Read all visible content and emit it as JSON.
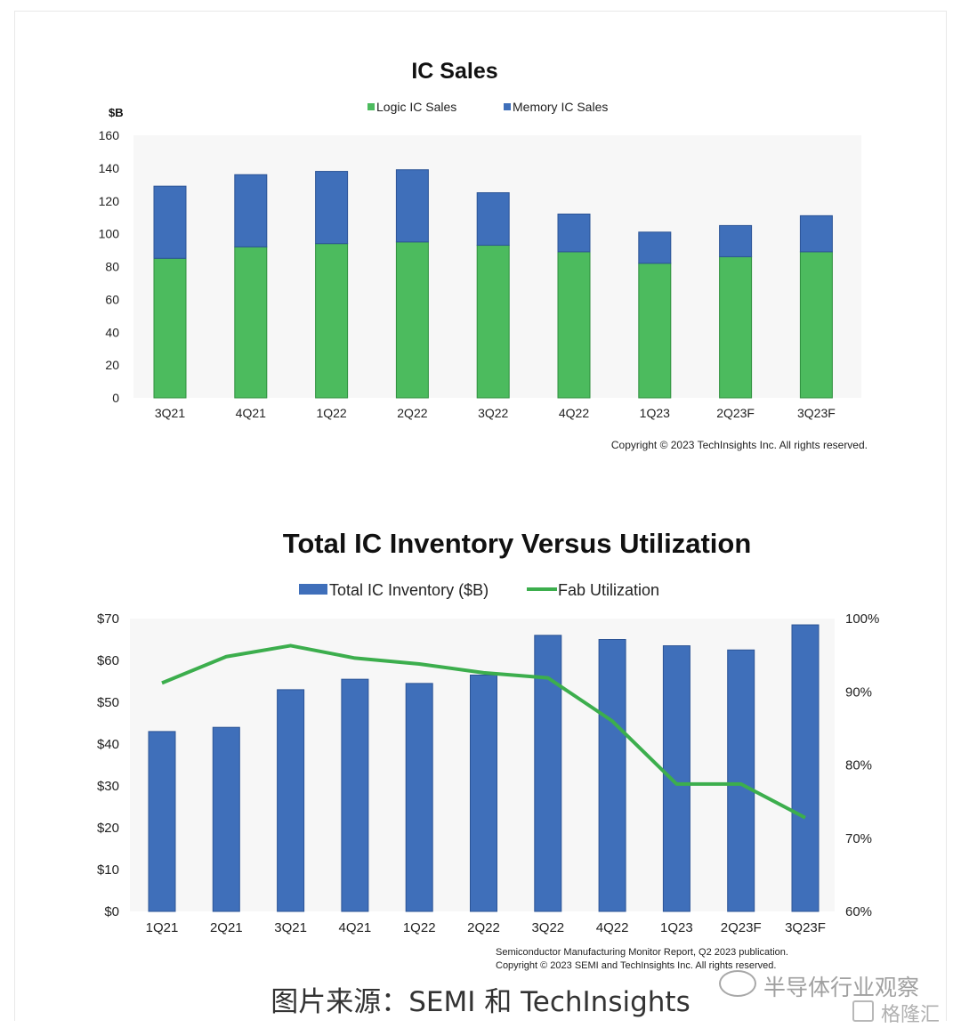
{
  "chart_data": [
    {
      "type": "bar",
      "stacked": true,
      "title": "IC Sales",
      "ylabel": "$B",
      "ylim": [
        0,
        160
      ],
      "yticks": [
        0,
        20,
        40,
        60,
        80,
        100,
        120,
        140,
        160
      ],
      "legend_position": "top",
      "categories": [
        "3Q21",
        "4Q21",
        "1Q22",
        "2Q22",
        "3Q22",
        "4Q22",
        "1Q23",
        "2Q23F",
        "3Q23F"
      ],
      "series": [
        {
          "name": "Logic IC Sales",
          "color": "#4cbb5e",
          "values": [
            85,
            92,
            94,
            95,
            93,
            89,
            82,
            86,
            89
          ]
        },
        {
          "name": "Memory IC Sales",
          "color": "#3f6fba",
          "values": [
            44,
            44,
            44,
            44,
            32,
            23,
            19,
            19,
            22
          ]
        }
      ],
      "note": "Copyright © 2023 TechInsights Inc.  All rights reserved."
    },
    {
      "type": "bar+line",
      "title": "Total IC Inventory Versus Utilization",
      "legend_position": "top",
      "categories": [
        "1Q21",
        "2Q21",
        "3Q21",
        "4Q21",
        "1Q22",
        "2Q22",
        "3Q22",
        "4Q22",
        "1Q23",
        "2Q23F",
        "3Q23F"
      ],
      "y_left": {
        "ylim": [
          0,
          70
        ],
        "ticks": [
          "$0",
          "$10",
          "$20",
          "$30",
          "$40",
          "$50",
          "$60",
          "$70"
        ]
      },
      "y_right": {
        "ylim": [
          60,
          100
        ],
        "ticks": [
          "60%",
          "70%",
          "80%",
          "90%",
          "100%"
        ]
      },
      "series": [
        {
          "name": "Total IC Inventory ($B)",
          "type": "bar",
          "axis": "left",
          "color": "#3f6fba",
          "values": [
            43,
            44,
            53,
            55.5,
            54.5,
            56.5,
            66,
            65,
            63.5,
            62.5,
            68.5
          ]
        },
        {
          "name": "Fab Utilization",
          "type": "line",
          "axis": "right",
          "color": "#3cae4d",
          "values": [
            91.2,
            94.8,
            96.3,
            94.6,
            93.8,
            92.6,
            91.9,
            86,
            77.4,
            77.4,
            72.8
          ]
        }
      ],
      "note_lines": [
        "Semiconductor Manufacturing Monitor Report, Q2 2023 publication.",
        "Copyright © 2023 SEMI and TechInsights Inc.  All rights reserved."
      ]
    }
  ],
  "caption": "图片来源：SEMI 和 TechInsights",
  "watermark": {
    "account": "半导体行业观察",
    "logo_text": "格隆汇"
  }
}
